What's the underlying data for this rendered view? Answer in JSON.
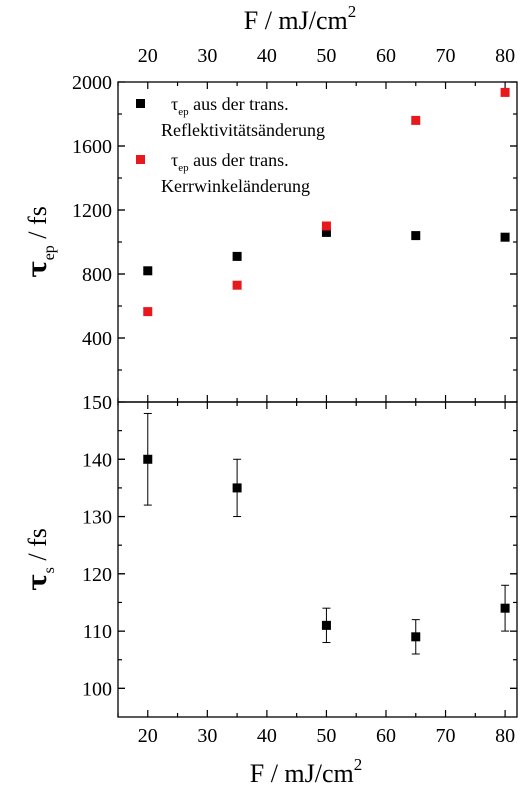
{
  "chart_data": [
    {
      "type": "scatter",
      "panel": "top",
      "ylabel_main": "τ",
      "ylabel_sub": "ep",
      "ylabel_rest": " / fs",
      "xlabel_main": "F  / mJ/cm",
      "xlabel_sup": "2",
      "xlim": [
        15,
        82
      ],
      "ylim": [
        0,
        2000
      ],
      "x_ticks": [
        20,
        30,
        40,
        50,
        60,
        70,
        80
      ],
      "x_tick_labels": [
        "20",
        "30",
        "40",
        "50",
        "60",
        "70",
        "80"
      ],
      "y_ticks": [
        400,
        800,
        1200,
        1600,
        2000
      ],
      "y_tick_labels": [
        "400",
        "800",
        "1200",
        "1600",
        "2000"
      ],
      "series": [
        {
          "color": "#000000",
          "marker": "square",
          "legend_symbol": "τ",
          "legend_sub": "ep",
          "legend_line1": " aus der trans.",
          "legend_line2": "Reflektivitätsänderung",
          "x": [
            20,
            35,
            50,
            65,
            80
          ],
          "y": [
            820,
            910,
            1060,
            1040,
            1030
          ]
        },
        {
          "color": "#e8191c",
          "marker": "square",
          "legend_symbol": "τ",
          "legend_sub": "ep",
          "legend_line1": " aus der trans.",
          "legend_line2": "Kerrwinkeländerung",
          "x": [
            20,
            35,
            50,
            65,
            80
          ],
          "y": [
            565,
            730,
            1100,
            1760,
            1935
          ]
        }
      ]
    },
    {
      "type": "scatter",
      "panel": "bottom",
      "ylabel_main": "τ",
      "ylabel_sub": "s",
      "ylabel_rest": " / fs",
      "xlabel_main": "F  / mJ/cm",
      "xlabel_sup": "2",
      "xlim": [
        15,
        82
      ],
      "ylim": [
        95,
        150
      ],
      "x_ticks": [
        20,
        30,
        40,
        50,
        60,
        70,
        80
      ],
      "x_tick_labels": [
        "20",
        "30",
        "40",
        "50",
        "60",
        "70",
        "80"
      ],
      "y_ticks": [
        100,
        110,
        120,
        130,
        140,
        150
      ],
      "y_tick_labels": [
        "100",
        "110",
        "120",
        "130",
        "140",
        "150"
      ],
      "series": [
        {
          "color": "#000000",
          "marker": "square",
          "x": [
            20,
            35,
            50,
            65,
            80
          ],
          "y": [
            140,
            135,
            111,
            109,
            114
          ],
          "yerr": [
            8,
            5,
            3,
            3,
            4
          ]
        }
      ]
    }
  ]
}
